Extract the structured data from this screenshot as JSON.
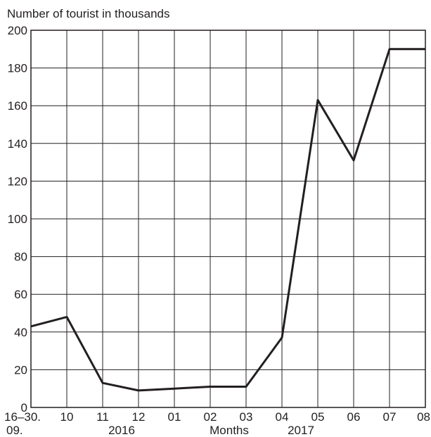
{
  "chart_data": {
    "type": "line",
    "title": "",
    "ylabel": "Number of tourist in thousands",
    "xlabel": "Months",
    "ylim": [
      0,
      200
    ],
    "yticks": [
      "0",
      "20",
      "40",
      "60",
      "80",
      "100",
      "120",
      "140",
      "160",
      "180",
      "200"
    ],
    "categories": [
      {
        "top": "16–30.",
        "bottom": "09."
      },
      {
        "top": "10",
        "bottom": ""
      },
      {
        "top": "11",
        "bottom": ""
      },
      {
        "top": "12",
        "bottom": ""
      },
      {
        "top": "01",
        "bottom": ""
      },
      {
        "top": "02",
        "bottom": ""
      },
      {
        "top": "03",
        "bottom": ""
      },
      {
        "top": "04",
        "bottom": ""
      },
      {
        "top": "05",
        "bottom": ""
      },
      {
        "top": "06",
        "bottom": ""
      },
      {
        "top": "07",
        "bottom": ""
      },
      {
        "top": "08",
        "bottom": ""
      }
    ],
    "year_labels": [
      "2016",
      "2017"
    ],
    "series": [
      {
        "values": [
          43,
          48,
          13,
          9,
          10,
          11,
          11,
          37,
          163,
          131,
          190,
          190
        ]
      }
    ],
    "grid": true,
    "line_color": "#231f20",
    "grid_color": "#231f20"
  }
}
